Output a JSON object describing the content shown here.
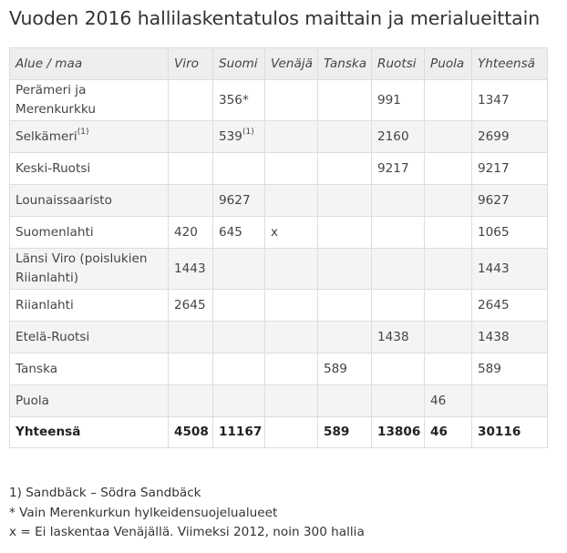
{
  "title": "Vuoden 2016 hallilaskentatulos maittain ja merialueittain",
  "table": {
    "headers": [
      "Alue / maa",
      "Viro",
      "Suomi",
      "Venäjä",
      "Tanska",
      "Ruotsi",
      "Puola",
      "Yhteensä"
    ],
    "rows": [
      {
        "area": "Perämeri ja Merenkurkku",
        "viro": "",
        "suomi": "356*",
        "suomi_sup": "",
        "venaja": "",
        "tanska": "",
        "ruotsi": "991",
        "puola": "",
        "total": "1347"
      },
      {
        "area": "Selkämeri",
        "area_sup": "(1)",
        "viro": "",
        "suomi": "539",
        "suomi_sup": "(1)",
        "venaja": "",
        "tanska": "",
        "ruotsi": "2160",
        "puola": "",
        "total": "2699"
      },
      {
        "area": "Keski-Ruotsi",
        "viro": "",
        "suomi": "",
        "venaja": "",
        "tanska": "",
        "ruotsi": "9217",
        "puola": "",
        "total": "9217"
      },
      {
        "area": "Lounaissaaristo",
        "viro": "",
        "suomi": "9627",
        "venaja": "",
        "tanska": "",
        "ruotsi": "",
        "puola": "",
        "total": "9627"
      },
      {
        "area": "Suomenlahti",
        "viro": "420",
        "suomi": "645",
        "venaja": "x",
        "tanska": "",
        "ruotsi": "",
        "puola": "",
        "total": "1065"
      },
      {
        "area": "Länsi Viro (poislukien Riianlahti)",
        "viro": "1443",
        "suomi": "",
        "venaja": "",
        "tanska": "",
        "ruotsi": "",
        "puola": "",
        "total": "1443"
      },
      {
        "area": "Riianlahti",
        "viro": "2645",
        "suomi": "",
        "venaja": "",
        "tanska": "",
        "ruotsi": "",
        "puola": "",
        "total": "2645"
      },
      {
        "area": "Etelä-Ruotsi",
        "viro": "",
        "suomi": "",
        "venaja": "",
        "tanska": "",
        "ruotsi": "1438",
        "puola": "",
        "total": "1438"
      },
      {
        "area": "Tanska",
        "viro": "",
        "suomi": "",
        "venaja": "",
        "tanska": "589",
        "ruotsi": "",
        "puola": "",
        "total": "589"
      },
      {
        "area": "Puola",
        "viro": "",
        "suomi": "",
        "venaja": "",
        "tanska": "",
        "ruotsi": "",
        "puola": "46",
        "total": ""
      }
    ],
    "totals": {
      "label": "Yhteensä",
      "viro": "4508",
      "suomi": "11167",
      "venaja": "",
      "tanska": "589",
      "ruotsi": "13806",
      "puola": "46",
      "total": "30116"
    }
  },
  "notes": [
    "1) Sandbäck – Södra Sandbäck",
    "* Vain Merenkurkun hylkeidensuojelualueet",
    "x = Ei laskentaa Venäjällä. Viimeksi 2012, noin 300 hallia"
  ]
}
